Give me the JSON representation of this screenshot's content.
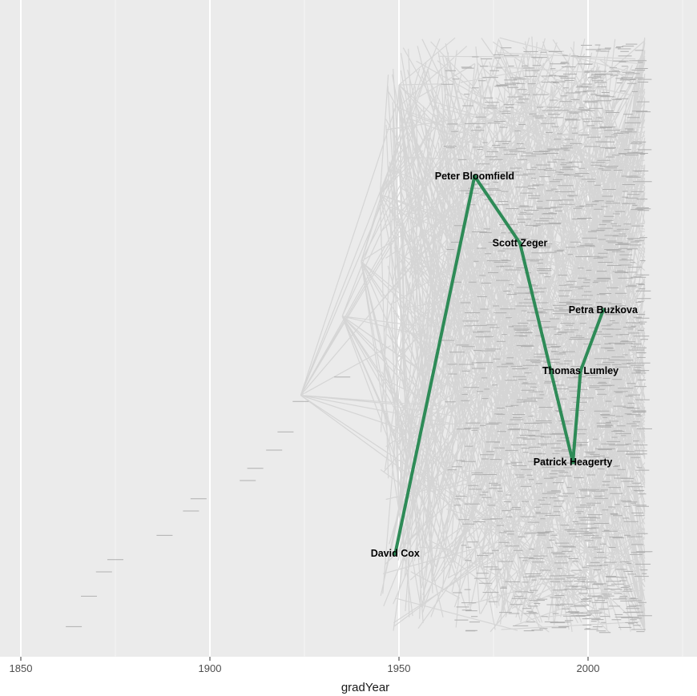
{
  "chart_data": {
    "type": "line",
    "title": "",
    "xlabel": "gradYear",
    "ylabel": "",
    "xlim": [
      1850,
      2030
    ],
    "x_ticks": [
      1850,
      1900,
      1950,
      2000
    ],
    "x_tick_labels": [
      "1850",
      "1900",
      "1950",
      "2000"
    ],
    "grid": true,
    "colors": {
      "panel_background": "#ebebeb",
      "grid_major": "#ffffff",
      "grid_minor": "#f4f4f4",
      "background_edges": "#d3d3d3",
      "background_nodes": "#b0b0b0",
      "highlight_path": "#2e8b57"
    },
    "series": [
      {
        "name": "",
        "points": [
          {
            "label": "David Cox",
            "x": 1949,
            "y": 0.13
          },
          {
            "label": "Peter Bloomfield",
            "x": 1970,
            "y": 0.75
          },
          {
            "label": "Scott Zeger",
            "x": 1982,
            "y": 0.64
          },
          {
            "label": "Patrick Heagerty",
            "x": 1996,
            "y": 0.28
          },
          {
            "label": "Thomas Lumley",
            "x": 1998,
            "y": 0.43
          },
          {
            "label": "Petra Buzkova",
            "x": 2004,
            "y": 0.53
          }
        ]
      }
    ]
  }
}
